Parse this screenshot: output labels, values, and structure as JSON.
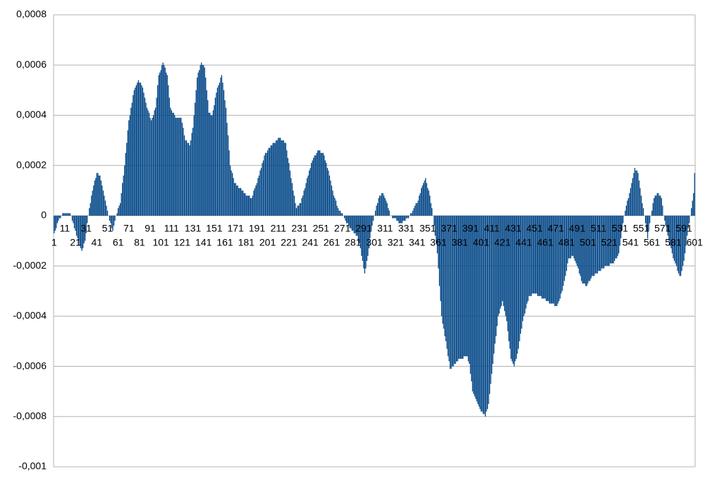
{
  "chart_data": {
    "type": "bar",
    "color": "#004586",
    "grid": true,
    "ylim": [
      -0.001,
      0.0008
    ],
    "yticks": [
      {
        "value": 0.0008,
        "label": "0,0008"
      },
      {
        "value": 0.0006,
        "label": "0,0006"
      },
      {
        "value": 0.0004,
        "label": "0,0004"
      },
      {
        "value": 0.0002,
        "label": "0,0002"
      },
      0,
      {
        "value": -0.0002,
        "label": "-0,0002"
      },
      {
        "value": -0.0004,
        "label": "-0,0004"
      },
      {
        "value": -0.0006,
        "label": "-0,0006"
      },
      {
        "value": -0.0008,
        "label": "-0,0008"
      },
      {
        "value": -0.001,
        "label": "-0,001"
      }
    ],
    "categories": [
      "1",
      null,
      null,
      null,
      null,
      null,
      null,
      null,
      null,
      null,
      "11",
      null,
      null,
      null,
      null,
      null,
      null,
      null,
      null,
      null,
      "21",
      null,
      null,
      null,
      null,
      null,
      null,
      null,
      null,
      null,
      "31",
      null,
      null,
      null,
      null,
      null,
      null,
      null,
      null,
      null,
      "41",
      null,
      null,
      null,
      null,
      null,
      null,
      null,
      null,
      null,
      "51",
      null,
      null,
      null,
      null,
      null,
      null,
      null,
      null,
      null,
      "61",
      null,
      null,
      null,
      null,
      null,
      null,
      null,
      null,
      null,
      "71",
      null,
      null,
      null,
      null,
      null,
      null,
      null,
      null,
      null,
      "81",
      null,
      null,
      null,
      null,
      null,
      null,
      null,
      null,
      null,
      "91",
      null,
      null,
      null,
      null,
      null,
      null,
      null,
      null,
      null,
      "101",
      null,
      null,
      null,
      null,
      null,
      null,
      null,
      null,
      null,
      "111",
      null,
      null,
      null,
      null,
      null,
      null,
      null,
      null,
      null,
      "121",
      null,
      null,
      null,
      null,
      null,
      null,
      null,
      null,
      null,
      "131",
      null,
      null,
      null,
      null,
      null,
      null,
      null,
      null,
      null,
      "141",
      null,
      null,
      null,
      null,
      null,
      null,
      null,
      null,
      null,
      "151",
      null,
      null,
      null,
      null,
      null,
      null,
      null,
      null,
      null,
      "161",
      null,
      null,
      null,
      null,
      null,
      null,
      null,
      null,
      null,
      "171",
      null,
      null,
      null,
      null,
      null,
      null,
      null,
      null,
      null,
      "181",
      null,
      null,
      null,
      null,
      null,
      null,
      null,
      null,
      null,
      "191",
      null,
      null,
      null,
      null,
      null,
      null,
      null,
      null,
      null,
      "201",
      null,
      null,
      null,
      null,
      null,
      null,
      null,
      null,
      null,
      "211",
      null,
      null,
      null,
      null,
      null,
      null,
      null,
      null,
      null,
      "221",
      null,
      null,
      null,
      null,
      null,
      null,
      null,
      null,
      null,
      "231",
      null,
      null,
      null,
      null,
      null,
      null,
      null,
      null,
      null,
      "241",
      null,
      null,
      null,
      null,
      null,
      null,
      null,
      null,
      null,
      "251",
      null,
      null,
      null,
      null,
      null,
      null,
      null,
      null,
      null,
      "261",
      null,
      null,
      null,
      null,
      null,
      null,
      null,
      null,
      null,
      "271",
      null,
      null,
      null,
      null,
      null,
      null,
      null,
      null,
      null,
      "281",
      null,
      null,
      null,
      null,
      null,
      null,
      null,
      null,
      null,
      "291",
      null,
      null,
      null,
      null,
      null,
      null,
      null,
      null,
      null,
      "301",
      null,
      null,
      null,
      null,
      null,
      null,
      null,
      null,
      null,
      "311",
      null,
      null,
      null,
      null,
      null,
      null,
      null,
      null,
      null,
      "321",
      null,
      null,
      null,
      null,
      null,
      null,
      null,
      null,
      null,
      "331",
      null,
      null,
      null,
      null,
      null,
      null,
      null,
      null,
      null,
      "341",
      null,
      null,
      null,
      null,
      null,
      null,
      null,
      null,
      null,
      "351",
      null,
      null,
      null,
      null,
      null,
      null,
      null,
      null,
      null,
      "361",
      null,
      null,
      null,
      null,
      null,
      null,
      null,
      null,
      null,
      "371",
      null,
      null,
      null,
      null,
      null,
      null,
      null,
      null,
      null,
      "381",
      null,
      null,
      null,
      null,
      null,
      null,
      null,
      null,
      null,
      "391",
      null,
      null,
      null,
      null,
      null,
      null,
      null,
      null,
      null,
      "401",
      null,
      null,
      null,
      null,
      null,
      null,
      null,
      null,
      null,
      "411",
      null,
      null,
      null,
      null,
      null,
      null,
      null,
      null,
      null,
      "421",
      null,
      null,
      null,
      null,
      null,
      null,
      null,
      null,
      null,
      "431",
      null,
      null,
      null,
      null,
      null,
      null,
      null,
      null,
      null,
      "441",
      null,
      null,
      null,
      null,
      null,
      null,
      null,
      null,
      null,
      "451",
      null,
      null,
      null,
      null,
      null,
      null,
      null,
      null,
      null,
      "461",
      null,
      null,
      null,
      null,
      null,
      null,
      null,
      null,
      null,
      "471",
      null,
      null,
      null,
      null,
      null,
      null,
      null,
      null,
      null,
      "481",
      null,
      null,
      null,
      null,
      null,
      null,
      null,
      null,
      null,
      "491",
      null,
      null,
      null,
      null,
      null,
      null,
      null,
      null,
      null,
      "501",
      null,
      null,
      null,
      null,
      null,
      null,
      null,
      null,
      null,
      "511",
      null,
      null,
      null,
      null,
      null,
      null,
      null,
      null,
      null,
      "521",
      null,
      null,
      null,
      null,
      null,
      null,
      null,
      null,
      null,
      "531",
      null,
      null,
      null,
      null,
      null,
      null,
      null,
      null,
      null,
      "541",
      null,
      null,
      null,
      null,
      null,
      null,
      null,
      null,
      null,
      "551",
      null,
      null,
      null,
      null,
      null,
      null,
      null,
      null,
      null,
      "561",
      null,
      null,
      null,
      null,
      null,
      null,
      null,
      null,
      null,
      "571",
      null,
      null,
      null,
      null,
      null,
      null,
      null,
      null,
      null,
      "581",
      null,
      null,
      null,
      null,
      null,
      null,
      null,
      null,
      null,
      "591",
      null,
      null,
      null,
      null,
      null,
      null,
      null,
      null,
      null,
      "601"
    ],
    "values": [
      -7e-05,
      -6e-05,
      -5e-05,
      -3e-05,
      -2e-05,
      -1e-05,
      -1e-05,
      0,
      1e-05,
      1e-05,
      1e-05,
      1e-05,
      1e-05,
      1e-05,
      1e-05,
      1e-05,
      0,
      -2e-05,
      -3e-05,
      -5e-05,
      -6e-05,
      -8e-05,
      -9e-05,
      -0.0001,
      -0.00012,
      -0.00013,
      -0.00014,
      -0.00013,
      -0.00011,
      -0.0001,
      -7e-05,
      -3e-05,
      0,
      3e-05,
      5e-05,
      8e-05,
      0.0001,
      0.00012,
      0.00014,
      0.00015,
      0.00017,
      0.00017,
      0.00016,
      0.00016,
      0.00014,
      0.00012,
      0.0001,
      8e-05,
      6e-05,
      4e-05,
      2e-05,
      0,
      -2e-05,
      -3e-05,
      -5e-05,
      -6e-05,
      -4e-05,
      -2e-05,
      0,
      1e-05,
      3e-05,
      4e-05,
      5e-05,
      9e-05,
      0.00013,
      0.00016,
      0.0002,
      0.00025,
      0.00029,
      0.00034,
      0.00038,
      0.0004,
      0.00043,
      0.00045,
      0.00048,
      0.0005,
      0.00051,
      0.00052,
      0.00053,
      0.00054,
      0.00053,
      0.00053,
      0.00052,
      0.00051,
      0.00049,
      0.00047,
      0.00045,
      0.00043,
      0.00042,
      0.00041,
      0.00039,
      0.00038,
      0.00039,
      0.0004,
      0.00042,
      0.00043,
      0.00047,
      0.00052,
      0.00056,
      0.00057,
      0.00058,
      0.0006,
      0.00061,
      0.0006,
      0.00059,
      0.00057,
      0.00056,
      0.00052,
      0.00047,
      0.00043,
      0.00042,
      0.00041,
      0.00041,
      0.0004,
      0.00039,
      0.00039,
      0.00039,
      0.00039,
      0.00039,
      0.00039,
      0.00037,
      0.00035,
      0.00032,
      0.0003,
      0.0003,
      0.00029,
      0.00029,
      0.00028,
      0.0003,
      0.00033,
      0.00035,
      0.0004,
      0.00045,
      0.0005,
      0.00055,
      0.00057,
      0.00058,
      0.0006,
      0.00061,
      0.0006,
      0.0006,
      0.00059,
      0.00055,
      0.0005,
      0.00046,
      0.00041,
      0.00041,
      0.0004,
      0.0004,
      0.00042,
      0.00044,
      0.00047,
      0.00049,
      0.00051,
      0.00052,
      0.00053,
      0.00055,
      0.00056,
      0.00053,
      0.0005,
      0.00046,
      0.00043,
      0.00037,
      0.00032,
      0.00026,
      0.0002,
      0.00018,
      0.00017,
      0.00015,
      0.00013,
      0.00013,
      0.00012,
      0.00012,
      0.00011,
      0.00011,
      0.00011,
      0.0001,
      0.0001,
      9e-05,
      9e-05,
      8e-05,
      8e-05,
      8e-05,
      8e-05,
      7e-05,
      7e-05,
      8e-05,
      0.0001,
      0.00011,
      0.00012,
      0.00013,
      0.00015,
      0.00016,
      0.00018,
      0.00019,
      0.00021,
      0.00022,
      0.00024,
      0.00025,
      0.00025,
      0.00026,
      0.00027,
      0.00027,
      0.00028,
      0.00028,
      0.00029,
      0.00029,
      0.00029,
      0.0003,
      0.0003,
      0.00031,
      0.00031,
      0.00031,
      0.0003,
      0.0003,
      0.0003,
      0.00029,
      0.00029,
      0.00026,
      0.00023,
      0.00021,
      0.00018,
      0.00015,
      0.00013,
      0.0001,
      8e-05,
      5e-05,
      3e-05,
      4e-05,
      4e-05,
      5e-05,
      5e-05,
      7e-05,
      8e-05,
      0.0001,
      0.00011,
      0.00013,
      0.00015,
      0.00016,
      0.00018,
      0.00019,
      0.00021,
      0.00022,
      0.00023,
      0.00024,
      0.00024,
      0.00025,
      0.00026,
      0.00026,
      0.00026,
      0.00025,
      0.00025,
      0.00025,
      0.00024,
      0.00022,
      0.00021,
      0.00019,
      0.00018,
      0.00016,
      0.00014,
      0.00012,
      0.0001,
      8e-05,
      7e-05,
      6e-05,
      4e-05,
      3e-05,
      2e-05,
      2e-05,
      1e-05,
      1e-05,
      0,
      -1e-05,
      -2e-05,
      -3e-05,
      -3e-05,
      -4e-05,
      -5e-05,
      -5e-05,
      -6e-05,
      -6e-05,
      -7e-05,
      -7e-05,
      -8e-05,
      -8e-05,
      -0.0001,
      -0.00011,
      -0.00013,
      -0.00016,
      -0.00018,
      -0.00021,
      -0.00023,
      -0.00021,
      -0.00018,
      -0.00016,
      -0.00013,
      -9e-05,
      -6e-05,
      -4e-05,
      -2e-05,
      0,
      2e-05,
      4e-05,
      5e-05,
      7e-05,
      8e-05,
      8e-05,
      9e-05,
      9e-05,
      8e-05,
      7e-05,
      6e-05,
      5e-05,
      3e-05,
      2e-05,
      0,
      0,
      -1e-05,
      -1e-05,
      -1e-05,
      -1e-05,
      -2e-05,
      -2e-05,
      -3e-05,
      -3e-05,
      -3e-05,
      -3e-05,
      -2e-05,
      -2e-05,
      -2e-05,
      -1e-05,
      -1e-05,
      -1e-05,
      0,
      1e-05,
      1e-05,
      2e-05,
      3e-05,
      4e-05,
      5e-05,
      5e-05,
      6e-05,
      8e-05,
      9e-05,
      0.00011,
      0.00012,
      0.00013,
      0.00014,
      0.00015,
      0.00013,
      0.00011,
      0.0001,
      8e-05,
      5e-05,
      3e-05,
      0,
      -4e-05,
      -8e-05,
      -0.00011,
      -0.00015,
      -0.00021,
      -0.00028,
      -0.00034,
      -0.0004,
      -0.00043,
      -0.00045,
      -0.00048,
      -0.0005,
      -0.00053,
      -0.00056,
      -0.00058,
      -0.00061,
      -0.00061,
      -0.0006,
      -0.0006,
      -0.00059,
      -0.00059,
      -0.00058,
      -0.00058,
      -0.00057,
      -0.00057,
      -0.00057,
      -0.00057,
      -0.00057,
      -0.00056,
      -0.00056,
      -0.00056,
      -0.00056,
      -0.00058,
      -0.00059,
      -0.00063,
      -0.00066,
      -0.0007,
      -0.00071,
      -0.00072,
      -0.00073,
      -0.00074,
      -0.00075,
      -0.00076,
      -0.00077,
      -0.00078,
      -0.00078,
      -0.00079,
      -0.00079,
      -0.0008,
      -0.00078,
      -0.00077,
      -0.00075,
      -0.00071,
      -0.00067,
      -0.00063,
      -0.00059,
      -0.00055,
      -0.00051,
      -0.00048,
      -0.00044,
      -0.0004,
      -0.00039,
      -0.00037,
      -0.00036,
      -0.00034,
      -0.00036,
      -0.00038,
      -0.0004,
      -0.00042,
      -0.00046,
      -0.0005,
      -0.00053,
      -0.00057,
      -0.00058,
      -0.00059,
      -0.0006,
      -0.00058,
      -0.00057,
      -0.00055,
      -0.00053,
      -0.0005,
      -0.00047,
      -0.00045,
      -0.00042,
      -0.0004,
      -0.00039,
      -0.00037,
      -0.00035,
      -0.00034,
      -0.00032,
      -0.00032,
      -0.00032,
      -0.00031,
      -0.00031,
      -0.00031,
      -0.00031,
      -0.00031,
      -0.00032,
      -0.00032,
      -0.00032,
      -0.00032,
      -0.00033,
      -0.00033,
      -0.00033,
      -0.00033,
      -0.00034,
      -0.00034,
      -0.00034,
      -0.00035,
      -0.00035,
      -0.00035,
      -0.00035,
      -0.00035,
      -0.00036,
      -0.00036,
      -0.00036,
      -0.00035,
      -0.00034,
      -0.00033,
      -0.00031,
      -0.0003,
      -0.00028,
      -0.00026,
      -0.00024,
      -0.00022,
      -0.00019,
      -0.00017,
      -0.00017,
      -0.00017,
      -0.00016,
      -0.00016,
      -0.00017,
      -0.00018,
      -0.00019,
      -0.0002,
      -0.00021,
      -0.00023,
      -0.00024,
      -0.00026,
      -0.00027,
      -0.00027,
      -0.00027,
      -0.00028,
      -0.00028,
      -0.00027,
      -0.00026,
      -0.00026,
      -0.00025,
      -0.00024,
      -0.00024,
      -0.00024,
      -0.00023,
      -0.00023,
      -0.00023,
      -0.00022,
      -0.00022,
      -0.00022,
      -0.00021,
      -0.00021,
      -0.00021,
      -0.0002,
      -0.0002,
      -0.0002,
      -0.0002,
      -0.0002,
      -0.00019,
      -0.00019,
      -0.00019,
      -0.00019,
      -0.00018,
      -0.00017,
      -0.00017,
      -0.00016,
      -0.00015,
      -0.00012,
      -9e-05,
      -6e-05,
      -3e-05,
      0,
      2e-05,
      4e-05,
      6e-05,
      7e-05,
      9e-05,
      0.00011,
      0.00013,
      0.00015,
      0.00017,
      0.00019,
      0.00018,
      0.00018,
      0.00017,
      0.00014,
      0.00011,
      8e-05,
      5e-05,
      3e-05,
      0,
      -3e-05,
      -6e-05,
      -9e-05,
      -6e-05,
      -3e-05,
      0,
      2e-05,
      5e-05,
      7e-05,
      8e-05,
      8e-05,
      9e-05,
      9e-05,
      8e-05,
      8e-05,
      7e-05,
      4e-05,
      0,
      -2e-05,
      -4e-05,
      -6e-05,
      -8e-05,
      -0.0001,
      -0.00012,
      -0.00013,
      -0.00015,
      -0.00017,
      -0.00018,
      -0.00019,
      -0.0002,
      -0.00022,
      -0.00023,
      -0.00024,
      -0.00024,
      -0.00022,
      -0.0002,
      -0.00018,
      -0.00015,
      -0.00012,
      -8e-05,
      -5e-05,
      -3e-05,
      0,
      3e-05,
      6e-05,
      9e-05,
      0.00017
    ]
  }
}
